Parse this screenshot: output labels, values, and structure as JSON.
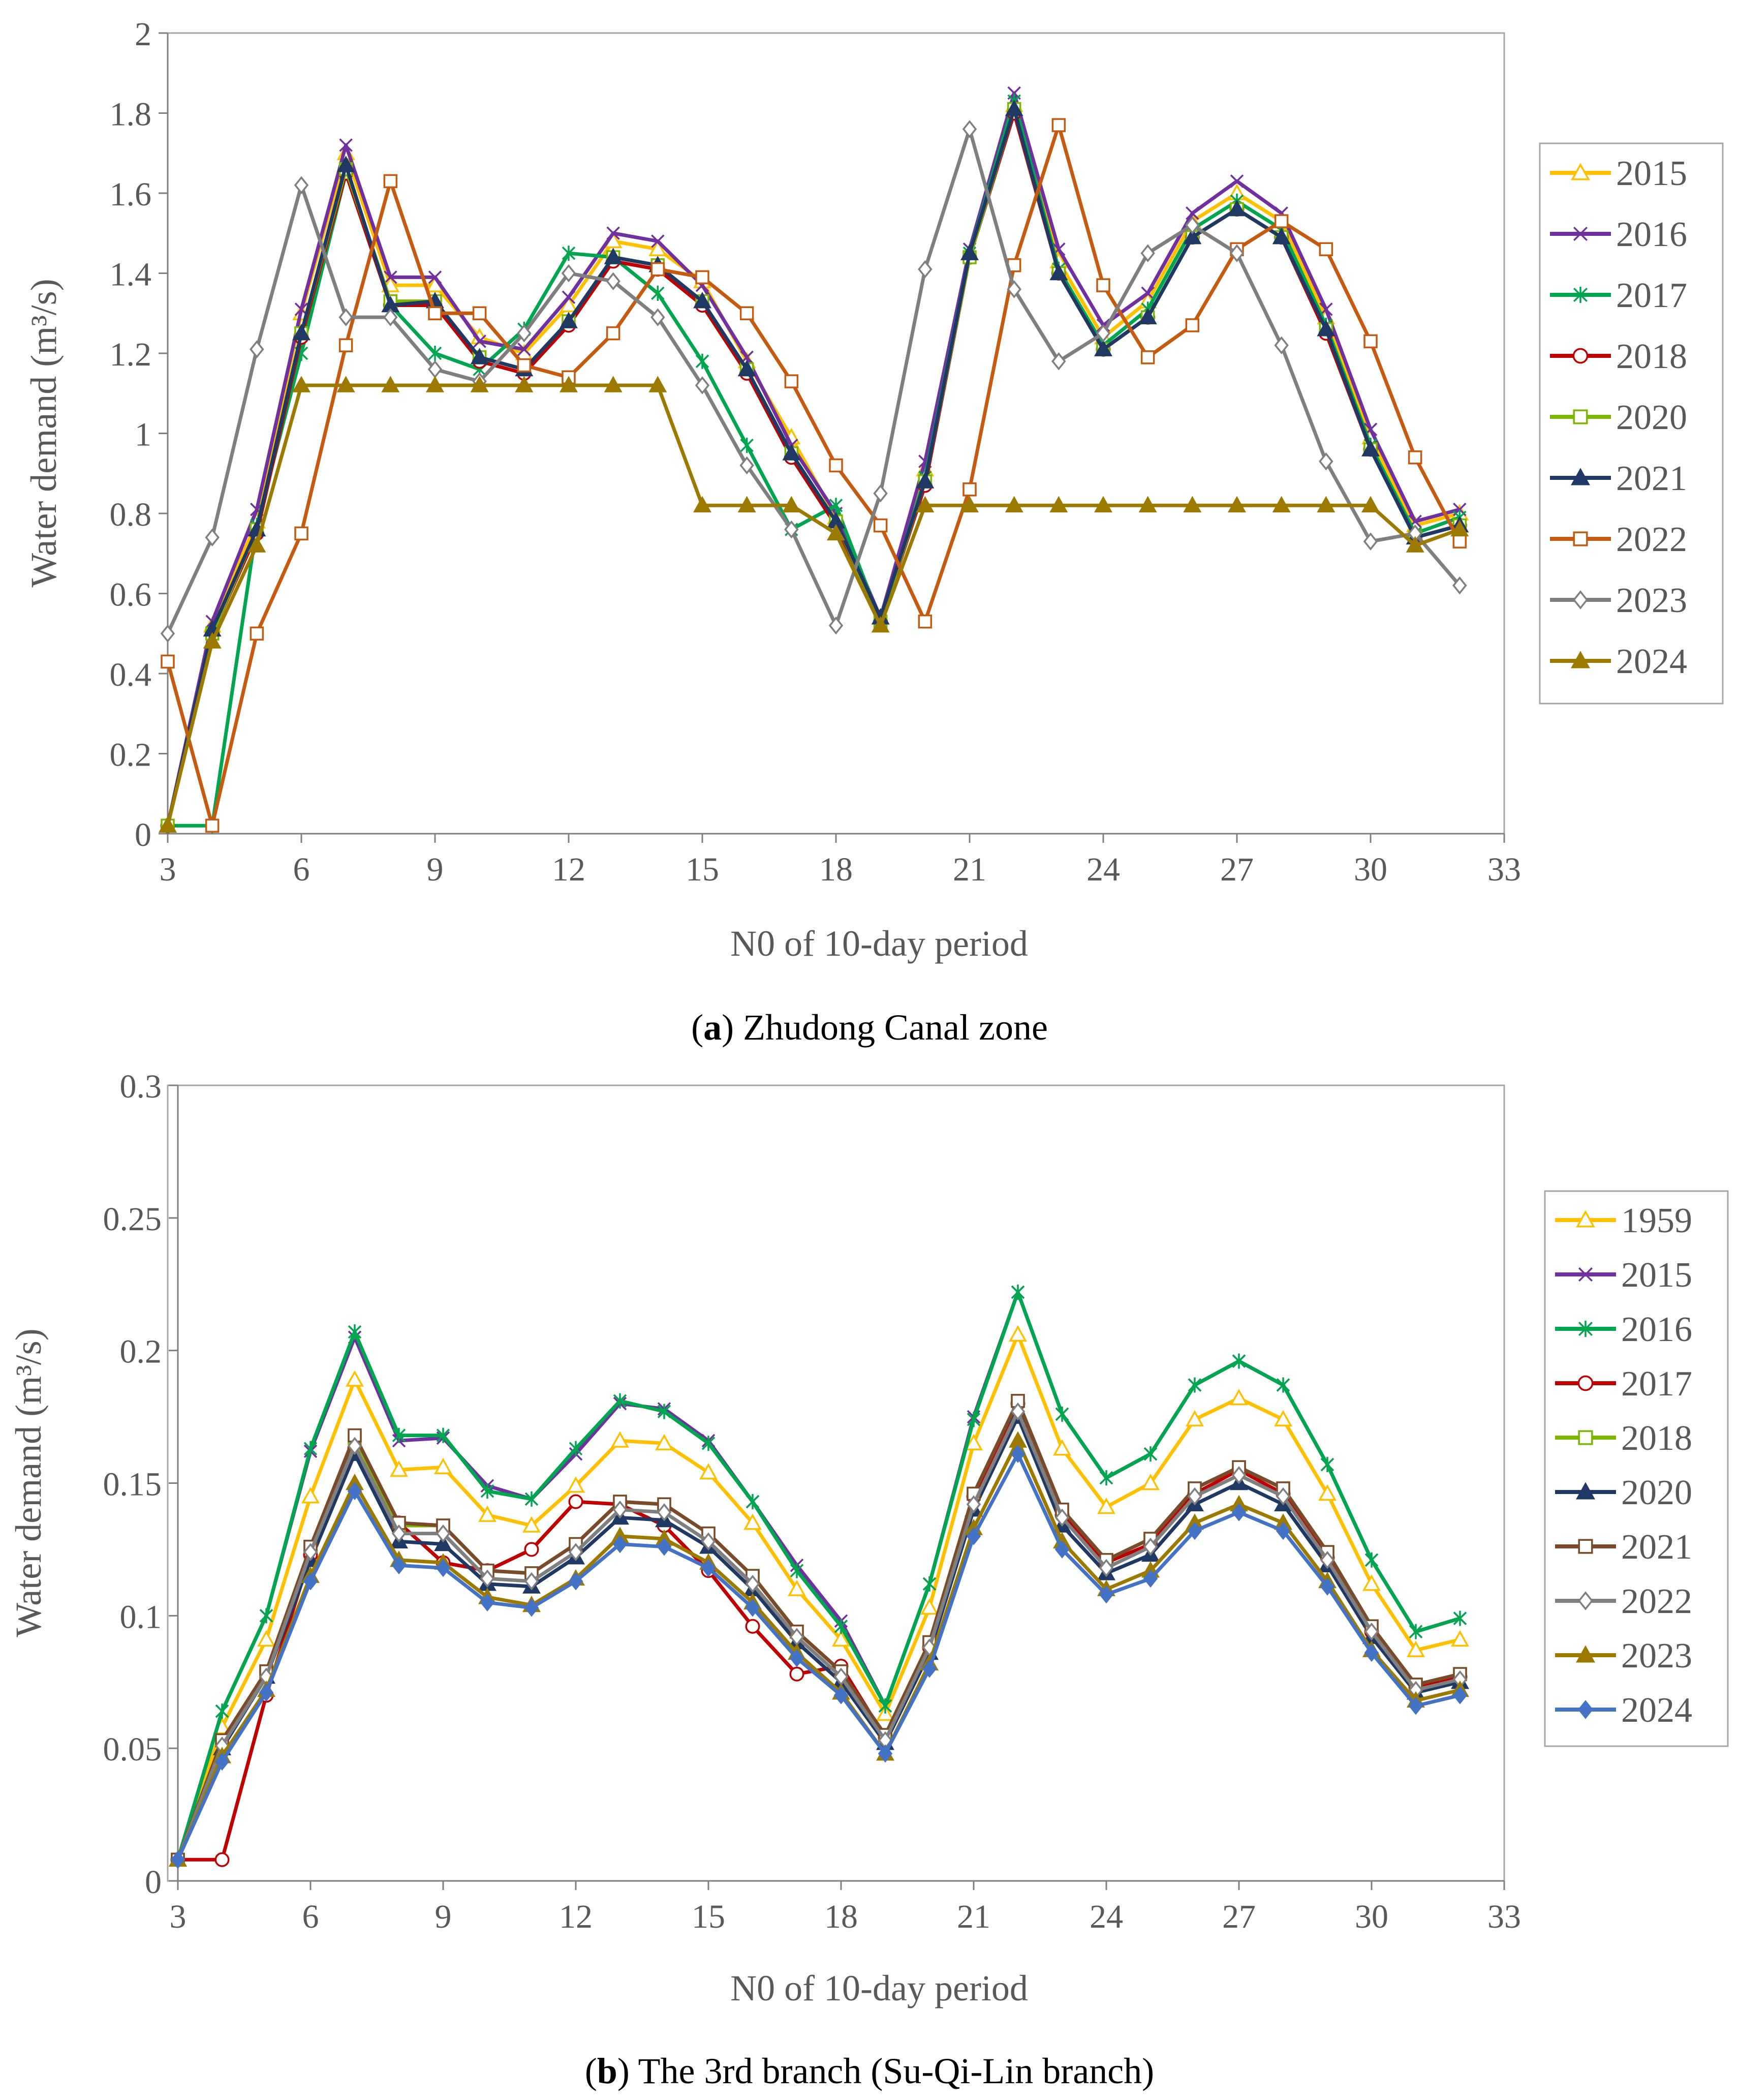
{
  "colors": {
    "1959": "#ffc000",
    "2015": "#ffc000",
    "2016": "#7030a0",
    "2017": "#00a64f",
    "2018": "#c00000",
    "2020": "#7ab800",
    "2021": "#1f3864",
    "2022": "#c55a11",
    "2023": "#7f7f7f",
    "2024": "#9c7a00",
    "2024b": "#4472c4",
    "diamond": "#5bc8dc",
    "axis": "#7f7f7f",
    "text": "#595959"
  },
  "chart_data": [
    {
      "type": "line",
      "panel": "a",
      "caption_letter": "a",
      "caption_text": "Zhudong Canal zone",
      "xlabel": "N0 of 10-day period",
      "ylabel": "Water demand (m³/s)",
      "xlim": [
        3,
        33
      ],
      "ylim": [
        0,
        2
      ],
      "xticks": [
        "3",
        "6",
        "9",
        "12",
        "15",
        "18",
        "21",
        "24",
        "27",
        "30",
        "33"
      ],
      "yticks": [
        "0",
        "0.2",
        "0.4",
        "0.6",
        "0.8",
        "1",
        "1.2",
        "1.4",
        "1.6",
        "1.8",
        "2"
      ],
      "x": [
        3,
        4,
        5,
        6,
        7,
        8,
        9,
        10,
        11,
        12,
        13,
        14,
        15,
        16,
        17,
        18,
        19,
        20,
        21,
        22,
        23,
        24,
        25,
        26,
        27,
        28,
        29,
        30,
        31,
        32
      ],
      "series": [
        {
          "name": "2015",
          "marker": "triangle-open",
          "color": "#ffc000",
          "values": [
            0.02,
            0.52,
            0.78,
            1.3,
            1.7,
            1.37,
            1.37,
            1.24,
            1.2,
            1.32,
            1.48,
            1.46,
            1.38,
            1.18,
            0.99,
            0.79,
            0.54,
            0.91,
            1.45,
            1.82,
            1.43,
            1.24,
            1.33,
            1.53,
            1.6,
            1.53,
            1.29,
            0.99,
            0.77,
            0.8
          ]
        },
        {
          "name": "2016",
          "marker": "x",
          "color": "#7030a0",
          "values": [
            0.02,
            0.53,
            0.81,
            1.31,
            1.72,
            1.39,
            1.39,
            1.23,
            1.21,
            1.34,
            1.5,
            1.48,
            1.37,
            1.19,
            0.97,
            0.8,
            0.54,
            0.93,
            1.46,
            1.85,
            1.46,
            1.27,
            1.35,
            1.55,
            1.63,
            1.55,
            1.31,
            1.01,
            0.78,
            0.81
          ]
        },
        {
          "name": "2017",
          "marker": "star",
          "color": "#00a64f",
          "values": [
            0.02,
            0.02,
            0.77,
            1.2,
            1.65,
            1.32,
            1.2,
            1.16,
            1.26,
            1.45,
            1.44,
            1.35,
            1.18,
            0.97,
            0.76,
            0.82,
            0.53,
            0.89,
            1.45,
            1.83,
            1.41,
            1.22,
            1.31,
            1.51,
            1.58,
            1.51,
            1.27,
            0.97,
            0.75,
            0.79
          ]
        },
        {
          "name": "2018",
          "marker": "circle-open",
          "color": "#c00000",
          "values": [
            0.02,
            0.5,
            0.75,
            1.24,
            1.65,
            1.32,
            1.32,
            1.18,
            1.15,
            1.27,
            1.43,
            1.41,
            1.32,
            1.15,
            0.94,
            0.77,
            0.53,
            0.87,
            1.44,
            1.8,
            1.4,
            1.21,
            1.29,
            1.49,
            1.56,
            1.49,
            1.25,
            0.96,
            0.74,
            0.77
          ]
        },
        {
          "name": "2020",
          "marker": "square-open",
          "color": "#7ab800",
          "values": [
            0.02,
            0.5,
            0.76,
            1.25,
            1.66,
            1.33,
            1.33,
            1.19,
            1.16,
            1.28,
            1.44,
            1.42,
            1.33,
            1.16,
            0.95,
            0.78,
            0.53,
            0.88,
            1.44,
            1.81,
            1.4,
            1.21,
            1.29,
            1.49,
            1.56,
            1.49,
            1.26,
            0.96,
            0.74,
            0.77
          ]
        },
        {
          "name": "2021",
          "marker": "triangle",
          "color": "#1f3864",
          "values": [
            0.02,
            0.51,
            0.76,
            1.25,
            1.67,
            1.32,
            1.33,
            1.19,
            1.16,
            1.28,
            1.44,
            1.42,
            1.33,
            1.16,
            0.95,
            0.78,
            0.54,
            0.88,
            1.45,
            1.81,
            1.4,
            1.21,
            1.29,
            1.49,
            1.56,
            1.49,
            1.26,
            0.96,
            0.74,
            0.77
          ]
        },
        {
          "name": "2022",
          "marker": "square-open",
          "color": "#c55a11",
          "values": [
            0.43,
            0.02,
            0.5,
            0.75,
            1.22,
            1.63,
            1.3,
            1.3,
            1.17,
            1.14,
            1.25,
            1.41,
            1.39,
            1.3,
            1.13,
            0.92,
            0.77,
            0.53,
            0.86,
            1.42,
            1.77,
            1.37,
            1.19,
            1.27,
            1.46,
            1.53,
            1.46,
            1.23,
            0.94,
            0.73
          ]
        },
        {
          "name": "2023",
          "marker": "diamond-open",
          "color": "#7f7f7f",
          "values": [
            0.5,
            0.74,
            1.21,
            1.62,
            1.29,
            1.29,
            1.16,
            1.13,
            1.25,
            1.4,
            1.38,
            1.29,
            1.12,
            0.92,
            0.76,
            0.52,
            0.85,
            1.41,
            1.76,
            1.36,
            1.18,
            1.25,
            1.45,
            1.52,
            1.45,
            1.22,
            0.93,
            0.73,
            0.75,
            0.62
          ]
        },
        {
          "name": "2024",
          "marker": "triangle",
          "color": "#9c7a00",
          "values": [
            0.02,
            0.48,
            0.72,
            1.12,
            1.12,
            1.12,
            1.12,
            1.12,
            1.12,
            1.12,
            1.12,
            1.12,
            0.82,
            0.82,
            0.82,
            0.75,
            0.52,
            0.82,
            0.82,
            0.82,
            0.82,
            0.82,
            0.82,
            0.82,
            0.82,
            0.82,
            0.82,
            0.82,
            0.72,
            0.76
          ]
        }
      ]
    },
    {
      "type": "line",
      "panel": "b",
      "caption_letter": "b",
      "caption_text": "The 3rd branch (Su-Qi-Lin branch)",
      "xlabel": "N0 of 10-day period",
      "ylabel": "Water demand (m³/s)",
      "xlim": [
        3,
        33
      ],
      "ylim": [
        0,
        0.3
      ],
      "xticks": [
        "3",
        "6",
        "9",
        "12",
        "15",
        "18",
        "21",
        "24",
        "27",
        "30",
        "33"
      ],
      "yticks": [
        "0",
        "0.05",
        "0.1",
        "0.15",
        "0.2",
        "0.25",
        "0.3"
      ],
      "x": [
        3,
        4,
        5,
        6,
        7,
        8,
        9,
        10,
        11,
        12,
        13,
        14,
        15,
        16,
        17,
        18,
        19,
        20,
        21,
        22,
        23,
        24,
        25,
        26,
        27,
        28,
        29,
        30,
        31,
        32
      ],
      "series": [
        {
          "name": "1959",
          "marker": "triangle-open",
          "color": "#ffc000",
          "values": [
            0.008,
            0.058,
            0.091,
            0.145,
            0.189,
            0.155,
            0.156,
            0.138,
            0.134,
            0.149,
            0.166,
            0.165,
            0.154,
            0.135,
            0.11,
            0.091,
            0.063,
            0.103,
            0.165,
            0.206,
            0.163,
            0.141,
            0.15,
            0.174,
            0.182,
            0.174,
            0.146,
            0.112,
            0.087,
            0.091
          ]
        },
        {
          "name": "2015",
          "marker": "x",
          "color": "#7030a0",
          "values": [
            0.008,
            0.064,
            0.1,
            0.162,
            0.205,
            0.166,
            0.167,
            0.149,
            0.144,
            0.161,
            0.18,
            0.178,
            0.166,
            0.143,
            0.119,
            0.098,
            0.066,
            0.112,
            0.175,
            0.222,
            0.176,
            0.152,
            0.161,
            0.187,
            0.196,
            0.187,
            0.157,
            0.121,
            0.094,
            0.099
          ]
        },
        {
          "name": "2016",
          "marker": "star",
          "color": "#00a64f",
          "values": [
            0.008,
            0.064,
            0.1,
            0.163,
            0.207,
            0.168,
            0.168,
            0.147,
            0.144,
            0.163,
            0.181,
            0.177,
            0.165,
            0.143,
            0.117,
            0.096,
            0.066,
            0.112,
            0.174,
            0.222,
            0.176,
            0.152,
            0.161,
            0.187,
            0.196,
            0.187,
            0.157,
            0.121,
            0.094,
            0.099
          ]
        },
        {
          "name": "2017",
          "marker": "circle-open",
          "color": "#c00000",
          "values": [
            0.008,
            0.008,
            0.07,
            0.123,
            0.163,
            0.135,
            0.12,
            0.117,
            0.125,
            0.143,
            0.142,
            0.134,
            0.117,
            0.096,
            0.078,
            0.081,
            0.054,
            0.088,
            0.145,
            0.18,
            0.138,
            0.12,
            0.127,
            0.146,
            0.155,
            0.146,
            0.122,
            0.094,
            0.073,
            0.077
          ]
        },
        {
          "name": "2018",
          "marker": "square-open",
          "color": "#7ab800",
          "values": [
            0.008,
            0.053,
            0.079,
            0.126,
            0.167,
            0.134,
            0.134,
            0.117,
            0.116,
            0.127,
            0.143,
            0.142,
            0.131,
            0.115,
            0.094,
            0.079,
            0.055,
            0.09,
            0.146,
            0.181,
            0.14,
            0.121,
            0.129,
            0.148,
            0.156,
            0.148,
            0.124,
            0.096,
            0.074,
            0.078
          ]
        },
        {
          "name": "2020",
          "marker": "triangle",
          "color": "#1f3864",
          "values": [
            0.008,
            0.05,
            0.077,
            0.121,
            0.161,
            0.128,
            0.127,
            0.112,
            0.111,
            0.122,
            0.137,
            0.136,
            0.126,
            0.11,
            0.09,
            0.075,
            0.052,
            0.086,
            0.14,
            0.175,
            0.134,
            0.116,
            0.123,
            0.142,
            0.15,
            0.142,
            0.119,
            0.092,
            0.071,
            0.075
          ]
        },
        {
          "name": "2021",
          "marker": "square-open",
          "color": "#7a4a2a",
          "values": [
            0.008,
            0.053,
            0.079,
            0.126,
            0.168,
            0.135,
            0.134,
            0.117,
            0.116,
            0.127,
            0.143,
            0.142,
            0.131,
            0.115,
            0.094,
            0.079,
            0.055,
            0.09,
            0.146,
            0.181,
            0.14,
            0.121,
            0.129,
            0.148,
            0.156,
            0.148,
            0.124,
            0.096,
            0.074,
            0.078
          ]
        },
        {
          "name": "2022",
          "marker": "diamond-open",
          "color": "#7f7f7f",
          "values": [
            0.008,
            0.051,
            0.077,
            0.124,
            0.164,
            0.131,
            0.131,
            0.114,
            0.113,
            0.124,
            0.14,
            0.139,
            0.128,
            0.112,
            0.092,
            0.077,
            0.053,
            0.088,
            0.142,
            0.177,
            0.137,
            0.118,
            0.126,
            0.145,
            0.153,
            0.145,
            0.121,
            0.094,
            0.072,
            0.076
          ]
        },
        {
          "name": "2023",
          "marker": "triangle",
          "color": "#9c7a00",
          "values": [
            0.008,
            0.047,
            0.072,
            0.115,
            0.15,
            0.121,
            0.12,
            0.107,
            0.104,
            0.114,
            0.13,
            0.129,
            0.12,
            0.105,
            0.086,
            0.071,
            0.048,
            0.082,
            0.133,
            0.166,
            0.128,
            0.11,
            0.117,
            0.135,
            0.142,
            0.135,
            0.113,
            0.087,
            0.068,
            0.072
          ]
        },
        {
          "name": "2024",
          "marker": "diamond",
          "color": "#4472c4",
          "values": [
            0.008,
            0.045,
            0.071,
            0.113,
            0.147,
            0.119,
            0.118,
            0.105,
            0.103,
            0.113,
            0.127,
            0.126,
            0.118,
            0.103,
            0.084,
            0.07,
            0.048,
            0.08,
            0.13,
            0.161,
            0.125,
            0.108,
            0.114,
            0.132,
            0.139,
            0.132,
            0.111,
            0.086,
            0.066,
            0.07
          ]
        }
      ]
    }
  ]
}
